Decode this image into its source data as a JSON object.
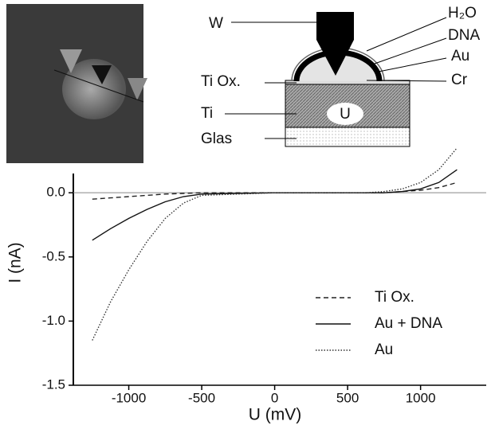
{
  "chart_data": {
    "type": "line",
    "x_label": "U (mV)",
    "y_label": "I (nA)",
    "x": [
      -1250,
      -1125,
      -1000,
      -875,
      -750,
      -625,
      -500,
      0,
      500,
      625,
      750,
      875,
      1000,
      1125,
      1250
    ],
    "series": [
      {
        "name": "Ti Ox.",
        "color": "#222222",
        "dash": "6,4",
        "values": [
          -0.05,
          -0.04,
          -0.03,
          -0.02,
          -0.01,
          -0.005,
          0,
          0,
          0,
          0,
          0,
          0.01,
          0.02,
          0.04,
          0.08
        ]
      },
      {
        "name": "Au + DNA",
        "color": "#111111",
        "dash": "none",
        "values": [
          -0.37,
          -0.28,
          -0.2,
          -0.13,
          -0.07,
          -0.03,
          -0.01,
          0,
          0,
          0,
          0,
          0.01,
          0.03,
          0.08,
          0.18
        ]
      },
      {
        "name": "Au",
        "color": "#333333",
        "dash": "1.5,2",
        "values": [
          -1.15,
          -0.85,
          -0.6,
          -0.38,
          -0.2,
          -0.08,
          -0.02,
          0,
          0,
          0,
          0.01,
          0.03,
          0.08,
          0.18,
          0.35
        ]
      }
    ],
    "xlim": [
      -1380,
      1450
    ],
    "ylim": [
      -1.5,
      0.15
    ],
    "xticks": [
      -1000,
      -500,
      0,
      500,
      1000
    ],
    "yticks": [
      -1.5,
      {
        "value": -1.0,
        "label": "-1.0"
      },
      -0.5,
      {
        "value": 0.0,
        "label": "0.0"
      }
    ],
    "annotations": {
      "tip": "W",
      "water": "H₂O",
      "dna": "DNA",
      "gold": "Au",
      "chromium": "Cr",
      "oxide": "Ti Ox.",
      "titanium": "Ti",
      "voltage": "U",
      "glass": "Glas"
    }
  }
}
